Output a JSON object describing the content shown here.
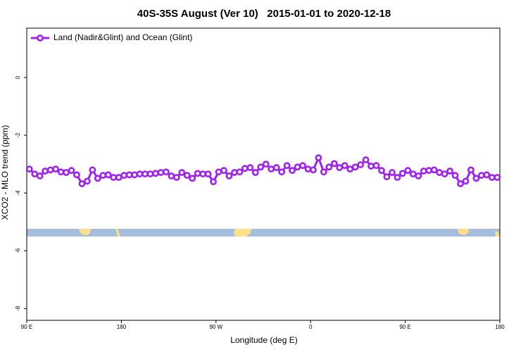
{
  "chart_data": {
    "type": "line",
    "title": "40S-35S August (Ver 10)   2015-01-01 to 2020-12-18",
    "x_label": "Longitude (deg E)",
    "y_label": "XCO2 - MLO trend (ppm)",
    "xlim": [
      90,
      540
    ],
    "xticks": [
      {
        "value": 90,
        "label": "90 E"
      },
      {
        "value": 180,
        "label": "180"
      },
      {
        "value": 270,
        "label": "90 W"
      },
      {
        "value": 360,
        "label": "0"
      },
      {
        "value": 450,
        "label": "90 E"
      },
      {
        "value": 540,
        "label": "180"
      }
    ],
    "ylim": [
      -8.41,
      1.71
    ],
    "yticks": [
      0,
      -2,
      -4,
      -6,
      -8
    ],
    "legend": "top-left",
    "x": [
      92.5,
      97.5,
      102.5,
      107.5,
      112.5,
      117.5,
      122.5,
      127.5,
      132.5,
      137.5,
      142.5,
      147.5,
      152.5,
      157.5,
      162.5,
      167.5,
      172.5,
      177.5,
      182.5,
      187.5,
      192.5,
      197.5,
      202.5,
      207.5,
      212.5,
      217.5,
      222.5,
      227.5,
      232.5,
      237.5,
      242.5,
      247.5,
      252.5,
      257.5,
      262.5,
      267.5,
      272.5,
      277.5,
      282.5,
      287.5,
      292.5,
      297.5,
      302.5,
      307.5,
      312.5,
      317.5,
      322.5,
      327.5,
      332.5,
      337.5,
      342.5,
      347.5,
      352.5,
      357.5,
      362.5,
      367.5,
      372.5,
      377.5,
      382.5,
      387.5,
      392.5,
      397.5,
      402.5,
      407.5,
      412.5,
      417.5,
      422.5,
      427.5,
      432.5,
      437.5,
      442.5,
      447.5,
      452.5,
      457.5,
      462.5,
      467.5,
      472.5,
      477.5,
      482.5,
      487.5,
      492.5,
      497.5,
      502.5,
      507.5,
      512.5,
      517.5,
      522.5,
      527.5,
      532.5,
      537.5
    ],
    "series": [
      {
        "name": "Land (Nadir&Glint) and Ocean (Glint)",
        "color": "#a020f0",
        "values": [
          -3.17,
          -3.34,
          -3.41,
          -3.24,
          -3.2,
          -3.17,
          -3.27,
          -3.29,
          -3.22,
          -3.37,
          -3.68,
          -3.59,
          -3.2,
          -3.49,
          -3.39,
          -3.37,
          -3.46,
          -3.46,
          -3.39,
          -3.37,
          -3.37,
          -3.34,
          -3.34,
          -3.34,
          -3.32,
          -3.29,
          -3.27,
          -3.41,
          -3.46,
          -3.29,
          -3.39,
          -3.49,
          -3.32,
          -3.34,
          -3.34,
          -3.61,
          -3.27,
          -3.22,
          -3.41,
          -3.29,
          -3.27,
          -3.15,
          -3.12,
          -3.29,
          -3.1,
          -3.0,
          -3.17,
          -3.12,
          -3.27,
          -3.05,
          -3.22,
          -3.1,
          -3.05,
          -3.17,
          -3.2,
          -2.78,
          -3.27,
          -3.1,
          -2.98,
          -3.12,
          -3.05,
          -3.17,
          -3.1,
          -3.02,
          -2.85,
          -3.07,
          -3.05,
          -3.22,
          -3.44,
          -3.29,
          -3.46,
          -3.32,
          -3.22,
          -3.34,
          -3.41,
          -3.24,
          -3.22,
          -3.2,
          -3.29,
          -3.34,
          -3.24,
          -3.39,
          -3.68,
          -3.59,
          -3.2,
          -3.49,
          -3.39,
          -3.37,
          -3.46,
          -3.46
        ]
      }
    ]
  }
}
